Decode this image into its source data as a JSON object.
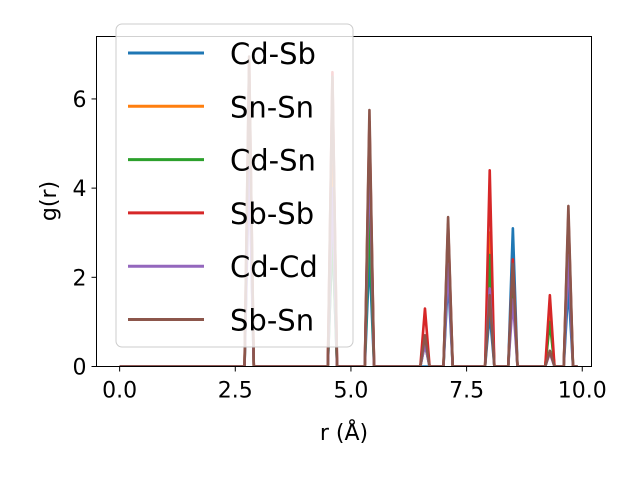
{
  "chart_data": {
    "type": "line",
    "xlabel": "r (Å)",
    "ylabel": "g(r)",
    "xlim": [
      -0.5,
      10.2
    ],
    "ylim": [
      0,
      7.4
    ],
    "xticks": [
      0.0,
      2.5,
      5.0,
      7.5,
      10.0
    ],
    "xtick_labels": [
      "0.0",
      "2.5",
      "5.0",
      "7.5",
      "10.0"
    ],
    "yticks": [
      0,
      2,
      4,
      6
    ],
    "ytick_labels": [
      "0",
      "2",
      "4",
      "6"
    ],
    "grid": false,
    "legend_position": "upper-left",
    "peak_half_width": 0.1,
    "x_range": [
      0.0,
      9.9
    ],
    "series": [
      {
        "name": "Cd-Sb",
        "color": "#1f77b4",
        "peaks": [
          [
            2.8,
            5.0
          ],
          [
            4.6,
            3.0
          ],
          [
            5.4,
            2.5
          ],
          [
            7.1,
            2.0
          ],
          [
            8.0,
            1.2
          ],
          [
            8.5,
            3.1
          ],
          [
            9.3,
            0.35
          ],
          [
            9.7,
            1.8
          ]
        ]
      },
      {
        "name": "Sn-Sn",
        "color": "#ff7f0e",
        "peaks": [
          [
            2.8,
            5.5
          ],
          [
            4.6,
            4.5
          ],
          [
            5.4,
            5.0
          ],
          [
            6.6,
            0.6
          ],
          [
            7.1,
            2.8
          ],
          [
            8.0,
            3.0
          ],
          [
            8.5,
            2.0
          ],
          [
            9.3,
            1.1
          ],
          [
            9.7,
            3.0
          ]
        ]
      },
      {
        "name": "Cd-Sn",
        "color": "#2ca02c",
        "peaks": [
          [
            2.8,
            5.0
          ],
          [
            4.6,
            3.0
          ],
          [
            5.4,
            3.5
          ],
          [
            6.6,
            0.5
          ],
          [
            7.1,
            2.5
          ],
          [
            8.0,
            2.5
          ],
          [
            8.5,
            1.8
          ],
          [
            9.3,
            1.0
          ],
          [
            9.7,
            2.8
          ]
        ]
      },
      {
        "name": "Sb-Sb",
        "color": "#d62728",
        "peaks": [
          [
            2.8,
            6.9
          ],
          [
            4.6,
            6.6
          ],
          [
            5.4,
            5.5
          ],
          [
            6.6,
            1.3
          ],
          [
            7.1,
            3.2
          ],
          [
            8.0,
            4.4
          ],
          [
            8.5,
            2.4
          ],
          [
            9.3,
            1.6
          ],
          [
            9.7,
            3.4
          ]
        ]
      },
      {
        "name": "Cd-Cd",
        "color": "#9467bd",
        "peaks": [
          [
            2.8,
            4.5
          ],
          [
            4.6,
            4.0
          ],
          [
            5.4,
            4.8
          ],
          [
            6.6,
            0.5
          ],
          [
            7.1,
            2.3
          ],
          [
            8.0,
            1.75
          ],
          [
            8.5,
            1.5
          ],
          [
            9.3,
            0.3
          ],
          [
            9.7,
            2.5
          ]
        ]
      },
      {
        "name": "Sb-Sn",
        "color": "#8c564b",
        "peaks": [
          [
            2.8,
            6.95
          ],
          [
            4.6,
            6.5
          ],
          [
            5.4,
            5.75
          ],
          [
            6.6,
            0.7
          ],
          [
            7.1,
            3.35
          ],
          [
            8.0,
            1.6
          ],
          [
            8.5,
            2.3
          ],
          [
            9.3,
            0.35
          ],
          [
            9.7,
            3.6
          ]
        ]
      }
    ]
  }
}
